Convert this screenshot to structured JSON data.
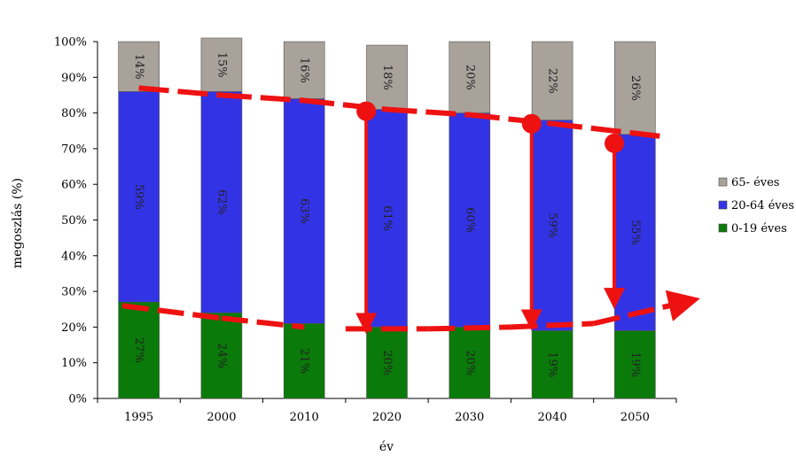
{
  "chart_data": {
    "type": "bar",
    "stacked": true,
    "percent": true,
    "title": "",
    "xlabel": "év",
    "ylabel": "megoszlás (%)",
    "ylim": [
      0,
      100
    ],
    "yticks": [
      "0%",
      "10%",
      "20%",
      "30%",
      "40%",
      "50%",
      "60%",
      "70%",
      "80%",
      "90%",
      "100%"
    ],
    "grid": false,
    "legend_position": "right",
    "categories": [
      "1995",
      "2000",
      "2010",
      "2020",
      "2030",
      "2040",
      "2050"
    ],
    "series": [
      {
        "name": "0-19 éves",
        "color": "#0a7a0a",
        "values": [
          27,
          24,
          21,
          20,
          20,
          19,
          19
        ],
        "labels": [
          "27%",
          "24%",
          "21%",
          "20%",
          "20%",
          "19%",
          "19%"
        ]
      },
      {
        "name": "20-64 éves",
        "color": "#3333e6",
        "values": [
          59,
          62,
          63,
          61,
          60,
          59,
          55
        ],
        "labels": [
          "59%",
          "62%",
          "63%",
          "61%",
          "60%",
          "59%",
          "55%"
        ]
      },
      {
        "name": "65- éves",
        "color": "#a8a29b",
        "values": [
          14,
          15,
          16,
          18,
          20,
          22,
          26
        ],
        "labels": [
          "14%",
          "15%",
          "16%",
          "18%",
          "20%",
          "22%",
          "26%"
        ]
      }
    ],
    "legend_order": [
      "65- éves",
      "20-64 éves",
      "0-19 éves"
    ],
    "annotations": {
      "color": "#ee1111",
      "upper_trend_dashes": [
        {
          "from": [
            0,
            87
          ],
          "to": [
            1,
            85
          ]
        },
        {
          "from": [
            1,
            85
          ],
          "to": [
            2,
            83.5
          ]
        },
        {
          "from": [
            2,
            83.5
          ],
          "to": [
            3,
            81
          ]
        },
        {
          "from": [
            3,
            81
          ],
          "to": [
            4,
            79.5
          ]
        },
        {
          "from": [
            4,
            79.5
          ],
          "to": [
            5,
            77
          ]
        },
        {
          "from": [
            5,
            77
          ],
          "to": [
            6.3,
            73.5
          ]
        }
      ],
      "lower_trend_dashes": [
        {
          "from": [
            -0.2,
            26
          ],
          "to": [
            1,
            22.5
          ]
        },
        {
          "from": [
            1,
            22.5
          ],
          "to": [
            2,
            20
          ]
        },
        {
          "from": [
            2.5,
            19.5
          ],
          "to": [
            3.5,
            19.5
          ]
        },
        {
          "from": [
            3.5,
            19.5
          ],
          "to": [
            4.5,
            20
          ]
        },
        {
          "from": [
            4.5,
            20
          ],
          "to": [
            5.5,
            21
          ]
        },
        {
          "from": [
            5.5,
            21
          ],
          "to": [
            6.6,
            27
          ]
        }
      ],
      "drop_arrows": [
        {
          "x": 2.75,
          "from": 80.5,
          "to": 21
        },
        {
          "x": 4.75,
          "from": 77,
          "to": 22
        },
        {
          "x": 5.75,
          "from": 71.5,
          "to": 28
        }
      ]
    }
  }
}
